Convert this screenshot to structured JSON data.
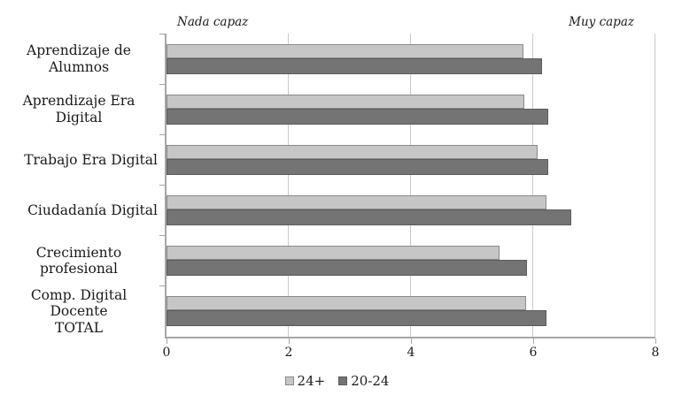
{
  "chart_data": {
    "type": "bar",
    "orientation": "horizontal",
    "title": "",
    "categories": [
      "Aprendizaje de Alumnos",
      "Aprendizaje Era Digital",
      "Trabajo Era Digital",
      "Ciudadanía Digital",
      "Crecimiento profesional",
      "Comp. Digital Docente\nTOTAL"
    ],
    "series": [
      {
        "name": "24+",
        "values": [
          5.84,
          5.85,
          6.07,
          6.22,
          5.45,
          5.88
        ],
        "fill": "#c6c6c6",
        "border": "#8a8a8a"
      },
      {
        "name": "20-24",
        "values": [
          6.14,
          6.25,
          6.25,
          6.63,
          5.9,
          6.22
        ],
        "fill": "#747474",
        "border": "#5c5c5c"
      }
    ],
    "xlim": [
      0,
      8
    ],
    "xticks": [
      "0",
      "2",
      "4",
      "6",
      "8"
    ],
    "annotations": {
      "left": "Nada capaz",
      "right": "Muy capaz"
    },
    "legend": {
      "position": "bottom-center",
      "entries": [
        "24+",
        "20-24"
      ]
    },
    "grid": "vertical",
    "colors": {
      "axis": "#a6a6a6",
      "gridline": "#c9c9c9",
      "text": "#1a1a1a"
    }
  }
}
